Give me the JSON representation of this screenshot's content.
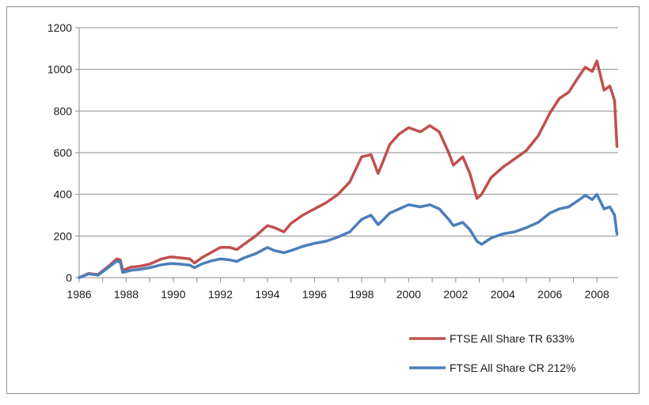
{
  "chart_data": {
    "type": "line",
    "title": "",
    "xlabel": "",
    "ylabel": "",
    "xlim": [
      1986,
      2008.9
    ],
    "ylim": [
      0,
      1200
    ],
    "x_ticks": [
      "1986",
      "1988",
      "1990",
      "1992",
      "1994",
      "1996",
      "1998",
      "2000",
      "2002",
      "2004",
      "2006",
      "2008"
    ],
    "y_ticks": [
      "0",
      "200",
      "400",
      "600",
      "800",
      "1000",
      "1200"
    ],
    "grid": "horizontal",
    "legend_position": "bottom-right",
    "series": [
      {
        "name": "FTSE All Share TR 633%",
        "color": "#c0504d",
        "x": [
          1986.0,
          1986.4,
          1986.8,
          1987.2,
          1987.6,
          1987.75,
          1987.85,
          1988.2,
          1988.6,
          1989.0,
          1989.5,
          1989.9,
          1990.3,
          1990.7,
          1990.9,
          1991.2,
          1991.6,
          1992.0,
          1992.4,
          1992.7,
          1993.0,
          1993.5,
          1994.0,
          1994.3,
          1994.7,
          1995.0,
          1995.5,
          1996.0,
          1996.5,
          1997.0,
          1997.5,
          1998.0,
          1998.4,
          1998.7,
          1998.85,
          1999.2,
          1999.6,
          2000.0,
          2000.5,
          2000.9,
          2001.3,
          2001.7,
          2001.9,
          2002.3,
          2002.6,
          2002.9,
          2003.1,
          2003.5,
          2004.0,
          2004.5,
          2005.0,
          2005.5,
          2006.0,
          2006.4,
          2006.8,
          2007.2,
          2007.5,
          2007.8,
          2008.0,
          2008.3,
          2008.55,
          2008.75,
          2008.85
        ],
        "values": [
          0,
          20,
          15,
          50,
          90,
          85,
          35,
          50,
          55,
          65,
          90,
          100,
          95,
          90,
          70,
          95,
          120,
          145,
          145,
          135,
          160,
          200,
          250,
          240,
          220,
          260,
          300,
          330,
          360,
          400,
          460,
          580,
          590,
          500,
          540,
          640,
          690,
          720,
          700,
          730,
          700,
          600,
          540,
          580,
          500,
          380,
          400,
          480,
          530,
          570,
          610,
          680,
          790,
          860,
          890,
          960,
          1010,
          990,
          1040,
          900,
          920,
          850,
          630
        ]
      },
      {
        "name": "FTSE All Share CR 212%",
        "color": "#4a7ebb",
        "x": [
          1986.0,
          1986.4,
          1986.8,
          1987.2,
          1987.6,
          1987.75,
          1987.85,
          1988.2,
          1988.6,
          1989.0,
          1989.5,
          1989.9,
          1990.3,
          1990.7,
          1990.9,
          1991.2,
          1991.6,
          1992.0,
          1992.4,
          1992.7,
          1993.0,
          1993.5,
          1994.0,
          1994.3,
          1994.7,
          1995.0,
          1995.5,
          1996.0,
          1996.5,
          1997.0,
          1997.5,
          1998.0,
          1998.4,
          1998.7,
          1998.85,
          1999.2,
          1999.6,
          2000.0,
          2000.5,
          2000.9,
          2001.3,
          2001.7,
          2001.9,
          2002.3,
          2002.6,
          2002.9,
          2003.1,
          2003.5,
          2004.0,
          2004.5,
          2005.0,
          2005.5,
          2006.0,
          2006.4,
          2006.8,
          2007.2,
          2007.5,
          2007.8,
          2008.0,
          2008.3,
          2008.55,
          2008.75,
          2008.85
        ],
        "values": [
          0,
          18,
          12,
          45,
          80,
          75,
          25,
          35,
          40,
          48,
          62,
          68,
          65,
          60,
          48,
          65,
          80,
          90,
          85,
          78,
          95,
          115,
          145,
          130,
          120,
          130,
          150,
          165,
          175,
          195,
          220,
          280,
          300,
          255,
          270,
          310,
          330,
          350,
          340,
          350,
          330,
          280,
          250,
          265,
          230,
          175,
          160,
          190,
          210,
          220,
          240,
          265,
          310,
          330,
          340,
          370,
          395,
          375,
          400,
          330,
          340,
          300,
          210
        ]
      }
    ]
  }
}
